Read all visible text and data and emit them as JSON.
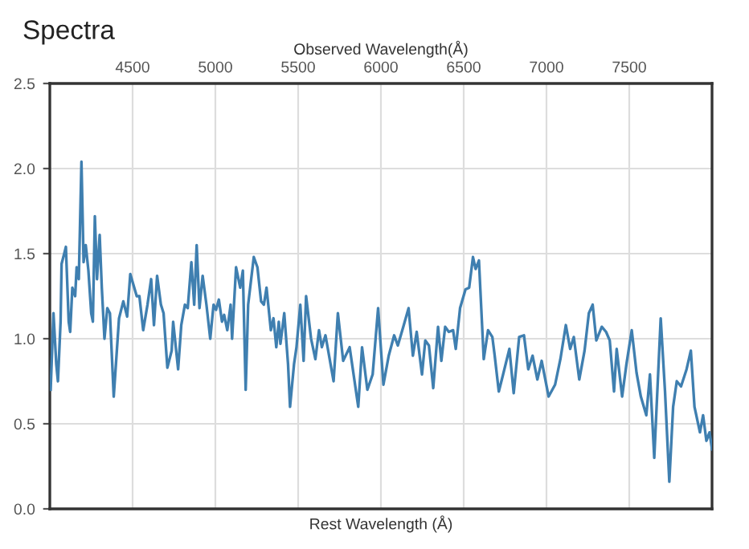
{
  "chart_data": {
    "type": "line",
    "title": "Spectra",
    "xlabel": "Observed Wavelength(Å)",
    "x2label": "Rest Wavelength (Å)",
    "xlim": [
      4000,
      8000
    ],
    "xticks": [
      4500,
      5000,
      5500,
      6000,
      6500,
      7000,
      7500
    ],
    "ylim": [
      0,
      2.5
    ],
    "yticks": [
      {
        "value": 0,
        "label": "0.0"
      },
      {
        "value": 0.5,
        "label": "0.5"
      },
      {
        "value": 1,
        "label": "1.0"
      },
      {
        "value": 1.5,
        "label": "1.5"
      },
      {
        "value": 2,
        "label": "2.0"
      },
      {
        "value": 2.5,
        "label": "2.5"
      }
    ],
    "grid": true,
    "marker": "none",
    "line_style": "solid",
    "series": [
      {
        "color": "#3f7fb0",
        "x": [
          4005,
          4022,
          4039,
          4049,
          4065,
          4071,
          4087,
          4097,
          4114,
          4123,
          4136,
          4153,
          4162,
          4175,
          4191,
          4204,
          4217,
          4233,
          4250,
          4260,
          4272,
          4285,
          4301,
          4314,
          4330,
          4347,
          4363,
          4386,
          4418,
          4444,
          4467,
          4486,
          4525,
          4541,
          4564,
          4590,
          4612,
          4629,
          4648,
          4671,
          4687,
          4710,
          4736,
          4745,
          4775,
          4794,
          4816,
          4833,
          4855,
          4872,
          4887,
          4904,
          4923,
          4946,
          4969,
          4989,
          5004,
          5021,
          5040,
          5053,
          5072,
          5092,
          5101,
          5125,
          5150,
          5166,
          5183,
          5198,
          5232,
          5254,
          5276,
          5293,
          5309,
          5335,
          5351,
          5368,
          5383,
          5393,
          5416,
          5439,
          5451,
          5475,
          5490,
          5513,
          5533,
          5548,
          5578,
          5604,
          5626,
          5643,
          5665,
          5714,
          5740,
          5772,
          5811,
          5863,
          5886,
          5918,
          5950,
          5983,
          6015,
          6047,
          6080,
          6102,
          6135,
          6167,
          6193,
          6216,
          6248,
          6268,
          6290,
          6316,
          6345,
          6365,
          6388,
          6410,
          6436,
          6452,
          6478,
          6511,
          6533,
          6556,
          6572,
          6592,
          6621,
          6647,
          6673,
          6686,
          6712,
          6738,
          6776,
          6802,
          6835,
          6864,
          6890,
          6916,
          6945,
          6971,
          7013,
          7052,
          7084,
          7117,
          7143,
          7165,
          7198,
          7230,
          7256,
          7279,
          7301,
          7334,
          7360,
          7382,
          7408,
          7424,
          7457,
          7483,
          7515,
          7544,
          7570,
          7603,
          7625,
          7651,
          7690,
          7716,
          7742,
          7765,
          7787,
          7813,
          7846,
          7872,
          7894,
          7927,
          7946,
          7966,
          7985,
          8000
        ],
        "values": [
          0.7,
          1.15,
          0.85,
          0.75,
          1.1,
          1.44,
          1.5,
          1.54,
          1.1,
          1.04,
          1.3,
          1.25,
          1.42,
          1.35,
          2.04,
          1.45,
          1.55,
          1.4,
          1.15,
          1.1,
          1.72,
          1.35,
          1.61,
          1.3,
          1.0,
          1.18,
          1.15,
          0.66,
          1.12,
          1.22,
          1.13,
          1.38,
          1.25,
          1.25,
          1.05,
          1.2,
          1.35,
          1.08,
          1.37,
          1.2,
          1.15,
          0.83,
          0.93,
          1.1,
          0.82,
          1.08,
          1.2,
          1.18,
          1.45,
          1.2,
          1.55,
          1.18,
          1.37,
          1.2,
          1.0,
          1.2,
          1.17,
          1.23,
          1.1,
          1.14,
          1.05,
          1.2,
          1.0,
          1.42,
          1.3,
          1.4,
          0.7,
          1.2,
          1.48,
          1.42,
          1.22,
          1.2,
          1.3,
          1.05,
          1.12,
          0.95,
          1.1,
          0.97,
          1.15,
          0.85,
          0.6,
          0.85,
          0.95,
          1.2,
          0.87,
          1.25,
          1.0,
          0.88,
          1.05,
          0.95,
          1.02,
          0.75,
          1.15,
          0.87,
          0.95,
          0.6,
          0.95,
          0.7,
          0.79,
          1.18,
          0.73,
          0.9,
          1.02,
          0.96,
          1.07,
          1.18,
          0.9,
          1.04,
          0.79,
          0.99,
          0.96,
          0.71,
          1.07,
          0.87,
          1.07,
          1.04,
          1.05,
          0.94,
          1.18,
          1.29,
          1.3,
          1.48,
          1.41,
          1.46,
          0.88,
          1.05,
          1.01,
          0.91,
          0.69,
          0.79,
          0.94,
          0.68,
          1.01,
          1.02,
          0.82,
          0.9,
          0.76,
          0.87,
          0.66,
          0.73,
          0.88,
          1.08,
          0.94,
          1.01,
          0.76,
          0.93,
          1.15,
          1.2,
          0.99,
          1.07,
          1.04,
          0.99,
          0.69,
          0.94,
          0.66,
          0.85,
          1.05,
          0.8,
          0.66,
          0.55,
          0.79,
          0.3,
          1.12,
          0.69,
          0.16,
          0.6,
          0.75,
          0.72,
          0.82,
          0.93,
          0.6,
          0.45,
          0.55,
          0.4,
          0.45,
          0.35
        ]
      }
    ]
  }
}
